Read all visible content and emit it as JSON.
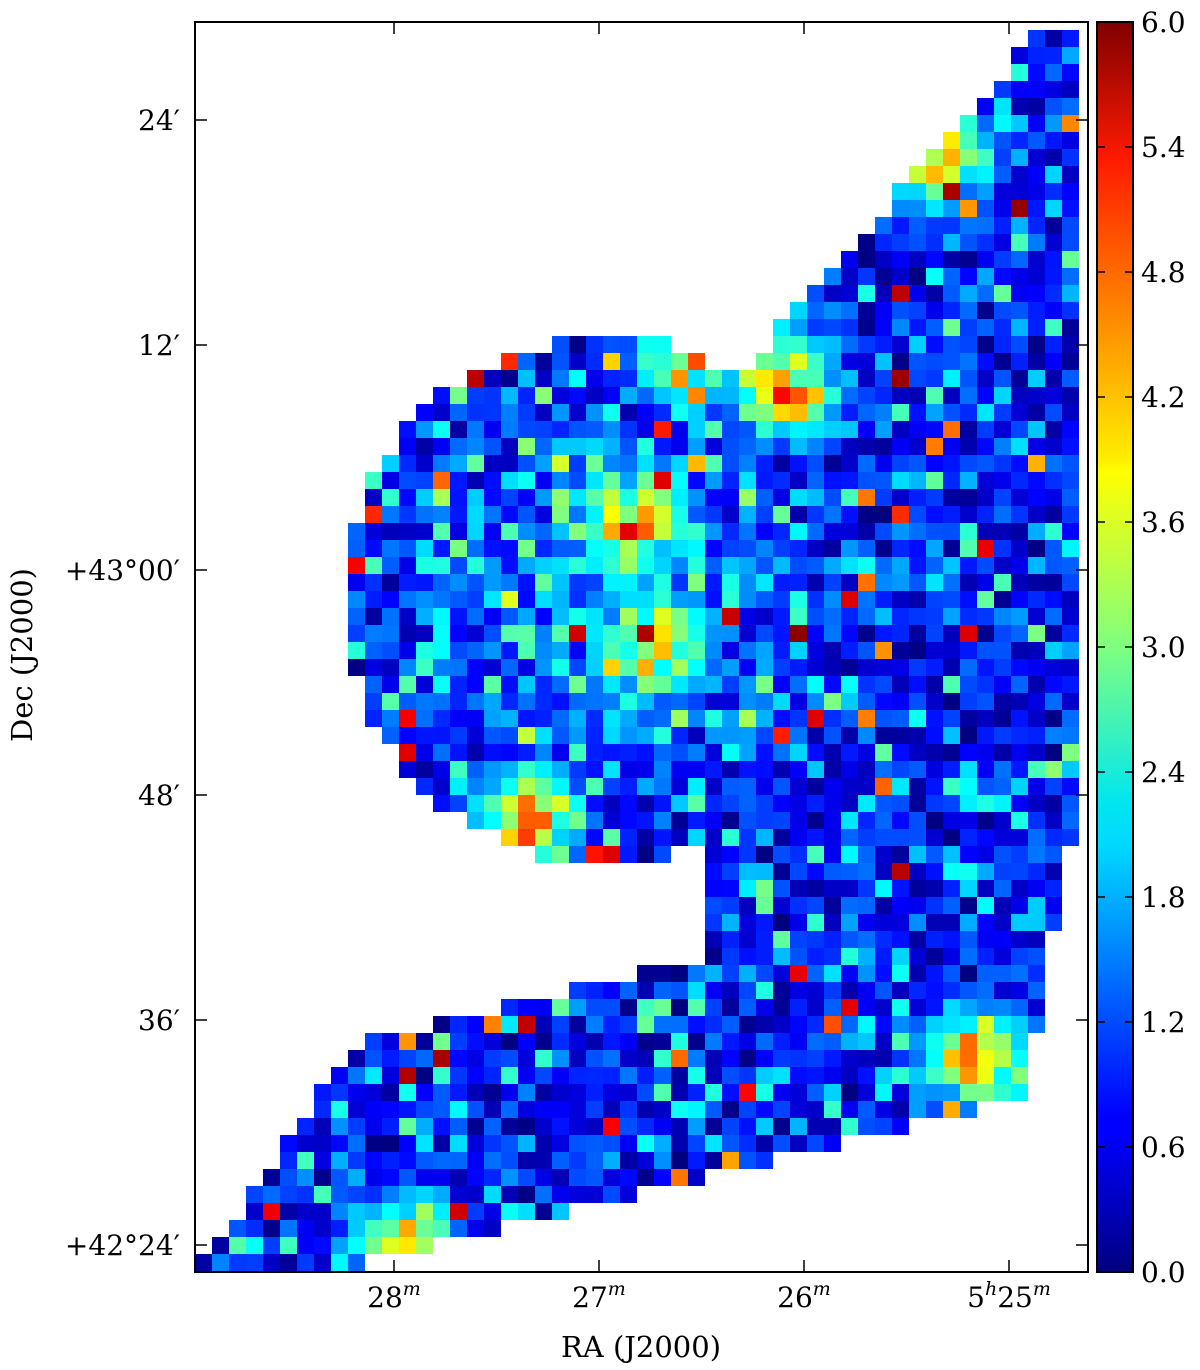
{
  "chart_data": {
    "type": "heatmap",
    "title": "",
    "xlabel": "RA (J2000)",
    "ylabel": "Dec (J2000)",
    "x_ticks": [
      {
        "ra_min": 28,
        "label": "28",
        "sup": "m",
        "prefix": "",
        "prefix_sup": ""
      },
      {
        "ra_min": 27,
        "label": "27",
        "sup": "m",
        "prefix": "",
        "prefix_sup": ""
      },
      {
        "ra_min": 26,
        "label": "26",
        "sup": "m",
        "prefix": "",
        "prefix_sup": ""
      },
      {
        "ra_min": 25,
        "label": "25",
        "sup": "m",
        "prefix": "5",
        "prefix_sup": "h"
      }
    ],
    "y_ticks": [
      {
        "dec_arcmin": 24,
        "label": "24′"
      },
      {
        "dec_arcmin": 12,
        "label": "12′"
      },
      {
        "dec_arcmin": 0,
        "label": "+43°00′"
      },
      {
        "dec_arcmin": -12,
        "label": "48′"
      },
      {
        "dec_arcmin": -24,
        "label": "36′"
      },
      {
        "dec_arcmin": -36,
        "label": "+42°24′"
      }
    ],
    "colorbar": {
      "min": 0.0,
      "max": 6.0,
      "colormap": "jet",
      "ticks": [
        "0.0",
        "0.6",
        "1.2",
        "1.8",
        "2.4",
        "3.0",
        "3.6",
        "4.2",
        "4.8",
        "5.4",
        "6.0"
      ]
    },
    "grid": false,
    "legend": "none",
    "region_shape": "circular field on upper-left joined to a north-east strip and a south-west strip, pixel map ~0.85' per cell",
    "hotspots": [
      {
        "ra_min": 26.1,
        "dec_arcmin": 9.8,
        "value": 6.0
      },
      {
        "ra_min": 26.85,
        "dec_arcmin": 2.5,
        "value": 5.8
      },
      {
        "ra_min": 27.35,
        "dec_arcmin": -13.5,
        "value": 6.0
      },
      {
        "ra_min": 26.55,
        "dec_arcmin": 11.5,
        "value": 5.2
      },
      {
        "ra_min": 26.75,
        "dec_arcmin": -4.0,
        "value": 5.5
      },
      {
        "ra_min": 25.15,
        "dec_arcmin": -26.0,
        "value": 5.6
      },
      {
        "ra_min": 25.35,
        "dec_arcmin": 22.0,
        "value": 5.0
      },
      {
        "ra_min": 27.95,
        "dec_arcmin": -36.0,
        "value": 5.4
      }
    ]
  }
}
